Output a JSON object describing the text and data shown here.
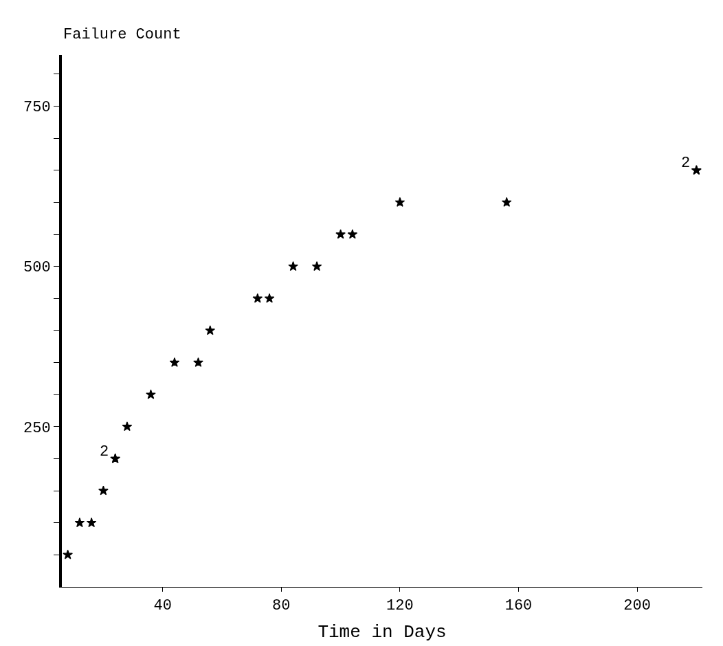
{
  "chart_data": {
    "type": "scatter",
    "xlabel": "Time in Days",
    "ylabel": "Failure Count",
    "x": [
      8,
      12,
      16,
      20,
      24,
      24,
      28,
      36,
      44,
      52,
      56,
      72,
      76,
      84,
      92,
      100,
      104,
      120,
      156,
      220,
      220
    ],
    "values": [
      50,
      100,
      100,
      150,
      200,
      200,
      250,
      300,
      350,
      350,
      400,
      450,
      450,
      500,
      500,
      550,
      550,
      600,
      600,
      650,
      650
    ],
    "color": "#000000",
    "marker": "star",
    "xlim": [
      6,
      222
    ],
    "xticks": [
      40,
      80,
      120,
      160,
      200
    ],
    "ylim": [
      0,
      830
    ],
    "yticks": [
      {
        "value": 50,
        "label": null
      },
      {
        "value": 100,
        "label": null
      },
      {
        "value": 150,
        "label": null
      },
      {
        "value": 200,
        "label": null
      },
      250,
      {
        "value": 300,
        "label": null
      },
      {
        "value": 350,
        "label": null
      },
      {
        "value": 400,
        "label": null
      },
      {
        "value": 450,
        "label": null
      },
      500,
      {
        "value": 550,
        "label": null
      },
      {
        "value": 600,
        "label": null
      },
      {
        "value": 650,
        "label": null
      },
      {
        "value": 700,
        "label": null
      },
      750,
      {
        "value": 800,
        "label": null
      }
    ],
    "annotations": [
      {
        "text": "2",
        "x": 24,
        "y": 200
      },
      {
        "text": "2",
        "x": 220,
        "y": 650
      }
    ]
  }
}
